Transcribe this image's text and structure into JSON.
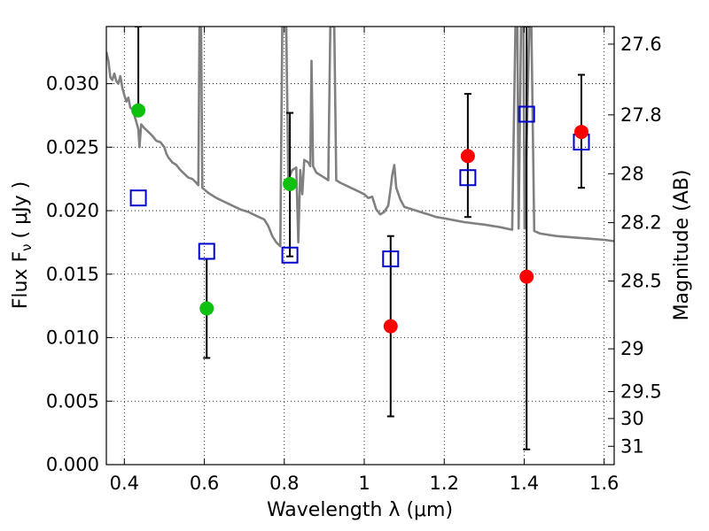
{
  "chart_data": {
    "type": "scatter",
    "xlabel": "Wavelength  λ (μm)",
    "ylabel": "Flux  F",
    "ylabel_sub": "ν",
    "ylabel_unit": "( μJy )",
    "y2label": "Magnitude (AB)",
    "xlim": [
      0.355,
      1.625
    ],
    "ylim": [
      0.0,
      0.0345
    ],
    "x_ticks": [
      0.4,
      0.6,
      0.8,
      1.0,
      1.2,
      1.4,
      1.6
    ],
    "x_tick_labels": [
      "0.4",
      "0.6",
      "0.8",
      "1",
      "1.2",
      "1.4",
      "1.6"
    ],
    "y_ticks": [
      0.0,
      0.005,
      0.01,
      0.015,
      0.02,
      0.025,
      0.03
    ],
    "y_tick_labels": [
      "0.000",
      "0.005",
      "0.010",
      "0.015",
      "0.020",
      "0.025",
      "0.030"
    ],
    "y2_ticks": [
      27.6,
      27.8,
      28.0,
      28.2,
      28.5,
      29.0,
      29.5,
      30.0,
      31.0
    ],
    "y2_tick_labels": [
      "27.6",
      "27.8",
      "28",
      "28.2",
      "28.5",
      "29",
      "29.5",
      "30",
      "31"
    ],
    "grid": true,
    "colors": {
      "green": "#10c010",
      "red": "#ff0000",
      "model_square": "#0000cc",
      "spectrum": "#808080",
      "error_bar": "#000000"
    },
    "observed_points": [
      {
        "x": 0.435,
        "y": 0.0279,
        "err_lo": 0.0279,
        "err_hi": 0.0345,
        "color": "green"
      },
      {
        "x": 0.606,
        "y": 0.0123,
        "err_lo": 0.0084,
        "err_hi": 0.0162,
        "color": "green"
      },
      {
        "x": 0.814,
        "y": 0.0221,
        "err_lo": 0.0164,
        "err_hi": 0.0277,
        "color": "green"
      },
      {
        "x": 1.066,
        "y": 0.0109,
        "err_lo": 0.0038,
        "err_hi": 0.018,
        "color": "red"
      },
      {
        "x": 1.259,
        "y": 0.0243,
        "err_lo": 0.0195,
        "err_hi": 0.0292,
        "color": "red"
      },
      {
        "x": 1.406,
        "y": 0.0148,
        "err_lo": 0.0012,
        "err_hi": 0.0345,
        "color": "red"
      },
      {
        "x": 1.543,
        "y": 0.0262,
        "err_lo": 0.0218,
        "err_hi": 0.0307,
        "color": "red"
      }
    ],
    "model_points": [
      {
        "x": 0.435,
        "y": 0.021
      },
      {
        "x": 0.606,
        "y": 0.0168
      },
      {
        "x": 0.814,
        "y": 0.0165
      },
      {
        "x": 1.066,
        "y": 0.0162
      },
      {
        "x": 1.259,
        "y": 0.0226
      },
      {
        "x": 1.406,
        "y": 0.0276
      },
      {
        "x": 1.543,
        "y": 0.0254
      }
    ],
    "spectrum": [
      [
        0.355,
        0.0325
      ],
      [
        0.36,
        0.0318
      ],
      [
        0.365,
        0.0305
      ],
      [
        0.37,
        0.0303
      ],
      [
        0.375,
        0.0308
      ],
      [
        0.38,
        0.0302
      ],
      [
        0.385,
        0.03
      ],
      [
        0.39,
        0.0306
      ],
      [
        0.395,
        0.0297
      ],
      [
        0.4,
        0.0291
      ],
      [
        0.405,
        0.0286
      ],
      [
        0.41,
        0.0289
      ],
      [
        0.415,
        0.0281
      ],
      [
        0.42,
        0.028
      ],
      [
        0.425,
        0.0275
      ],
      [
        0.43,
        0.027
      ],
      [
        0.435,
        0.0264
      ],
      [
        0.438,
        0.025
      ],
      [
        0.442,
        0.0268
      ],
      [
        0.45,
        0.0265
      ],
      [
        0.46,
        0.0262
      ],
      [
        0.47,
        0.0259
      ],
      [
        0.48,
        0.0255
      ],
      [
        0.49,
        0.0254
      ],
      [
        0.5,
        0.025
      ],
      [
        0.505,
        0.0245
      ],
      [
        0.51,
        0.0242
      ],
      [
        0.52,
        0.0238
      ],
      [
        0.53,
        0.0236
      ],
      [
        0.54,
        0.0232
      ],
      [
        0.55,
        0.0229
      ],
      [
        0.56,
        0.0226
      ],
      [
        0.57,
        0.0225
      ],
      [
        0.58,
        0.0222
      ],
      [
        0.585,
        0.022
      ],
      [
        0.588,
        0.0345
      ],
      [
        0.592,
        0.0345
      ],
      [
        0.595,
        0.0218
      ],
      [
        0.61,
        0.0214
      ],
      [
        0.63,
        0.021
      ],
      [
        0.65,
        0.0207
      ],
      [
        0.67,
        0.0204
      ],
      [
        0.69,
        0.0201
      ],
      [
        0.71,
        0.0199
      ],
      [
        0.73,
        0.0196
      ],
      [
        0.75,
        0.0193
      ],
      [
        0.76,
        0.0188
      ],
      [
        0.77,
        0.018
      ],
      [
        0.78,
        0.0175
      ],
      [
        0.79,
        0.0172
      ],
      [
        0.795,
        0.0345
      ],
      [
        0.805,
        0.0345
      ],
      [
        0.81,
        0.0225
      ],
      [
        0.82,
        0.0232
      ],
      [
        0.83,
        0.0234
      ],
      [
        0.835,
        0.0175
      ],
      [
        0.84,
        0.0232
      ],
      [
        0.845,
        0.0213
      ],
      [
        0.85,
        0.024
      ],
      [
        0.86,
        0.0238
      ],
      [
        0.865,
        0.0235
      ],
      [
        0.868,
        0.0318
      ],
      [
        0.872,
        0.0235
      ],
      [
        0.88,
        0.023
      ],
      [
        0.89,
        0.0228
      ],
      [
        0.9,
        0.0226
      ],
      [
        0.91,
        0.0224
      ],
      [
        0.915,
        0.0345
      ],
      [
        0.925,
        0.0345
      ],
      [
        0.93,
        0.0224
      ],
      [
        0.94,
        0.0222
      ],
      [
        0.96,
        0.0219
      ],
      [
        0.98,
        0.0216
      ],
      [
        1.0,
        0.0213
      ],
      [
        1.01,
        0.021
      ],
      [
        1.02,
        0.0211
      ],
      [
        1.03,
        0.0201
      ],
      [
        1.04,
        0.0197
      ],
      [
        1.05,
        0.0199
      ],
      [
        1.06,
        0.0204
      ],
      [
        1.065,
        0.0215
      ],
      [
        1.07,
        0.0228
      ],
      [
        1.075,
        0.0236
      ],
      [
        1.08,
        0.0218
      ],
      [
        1.09,
        0.0209
      ],
      [
        1.1,
        0.0203
      ],
      [
        1.12,
        0.0201
      ],
      [
        1.14,
        0.0199
      ],
      [
        1.16,
        0.0197
      ],
      [
        1.18,
        0.0195
      ],
      [
        1.2,
        0.0194
      ],
      [
        1.25,
        0.0191
      ],
      [
        1.3,
        0.0189
      ],
      [
        1.34,
        0.0187
      ],
      [
        1.37,
        0.0185
      ],
      [
        1.378,
        0.0345
      ],
      [
        1.383,
        0.0345
      ],
      [
        1.386,
        0.0186
      ],
      [
        1.392,
        0.0345
      ],
      [
        1.398,
        0.0345
      ],
      [
        1.401,
        0.0186
      ],
      [
        1.413,
        0.0345
      ],
      [
        1.418,
        0.0345
      ],
      [
        1.425,
        0.0184
      ],
      [
        1.44,
        0.0182
      ],
      [
        1.48,
        0.018
      ],
      [
        1.52,
        0.0179
      ],
      [
        1.56,
        0.0178
      ],
      [
        1.6,
        0.0177
      ],
      [
        1.625,
        0.0176
      ]
    ]
  }
}
